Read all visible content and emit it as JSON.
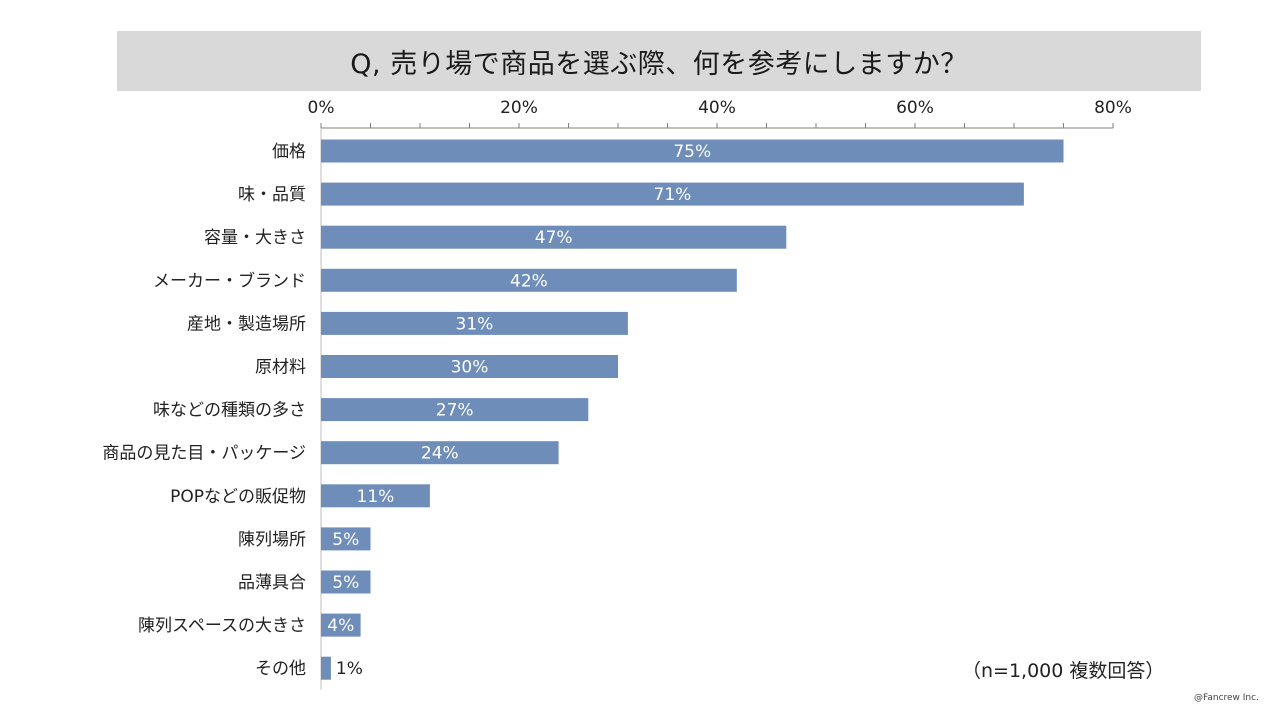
{
  "chart_data": {
    "type": "bar",
    "orientation": "horizontal",
    "title": "Q, 売り場で商品を選ぶ際、何を参考にしますか？",
    "categories": [
      "価格",
      "味・品質",
      "容量・大きさ",
      "メーカー・ブランド",
      "産地・製造場所",
      "原材料",
      "味などの種類の多さ",
      "商品の見た目・パッケージ",
      "POPなどの販促物",
      "陳列場所",
      "品薄具合",
      "陳列スペースの大きさ",
      "その他"
    ],
    "values": [
      75,
      71,
      47,
      42,
      31,
      30,
      27,
      24,
      11,
      5,
      5,
      4,
      1
    ],
    "value_labels": [
      "75%",
      "71%",
      "47%",
      "42%",
      "31%",
      "30%",
      "27%",
      "24%",
      "11%",
      "5%",
      "5%",
      "4%",
      "1%"
    ],
    "xlim": [
      0,
      80
    ],
    "x_ticks": [
      "0%",
      "20%",
      "40%",
      "60%",
      "80%"
    ],
    "x_tick_values": [
      0,
      20,
      40,
      60,
      80
    ],
    "axis_position": "top",
    "grid": false,
    "bar_color": "#6e8db9",
    "note": "（n=1,000 複数回答）"
  },
  "footer": {
    "copyright": "@Fancrew Inc."
  }
}
